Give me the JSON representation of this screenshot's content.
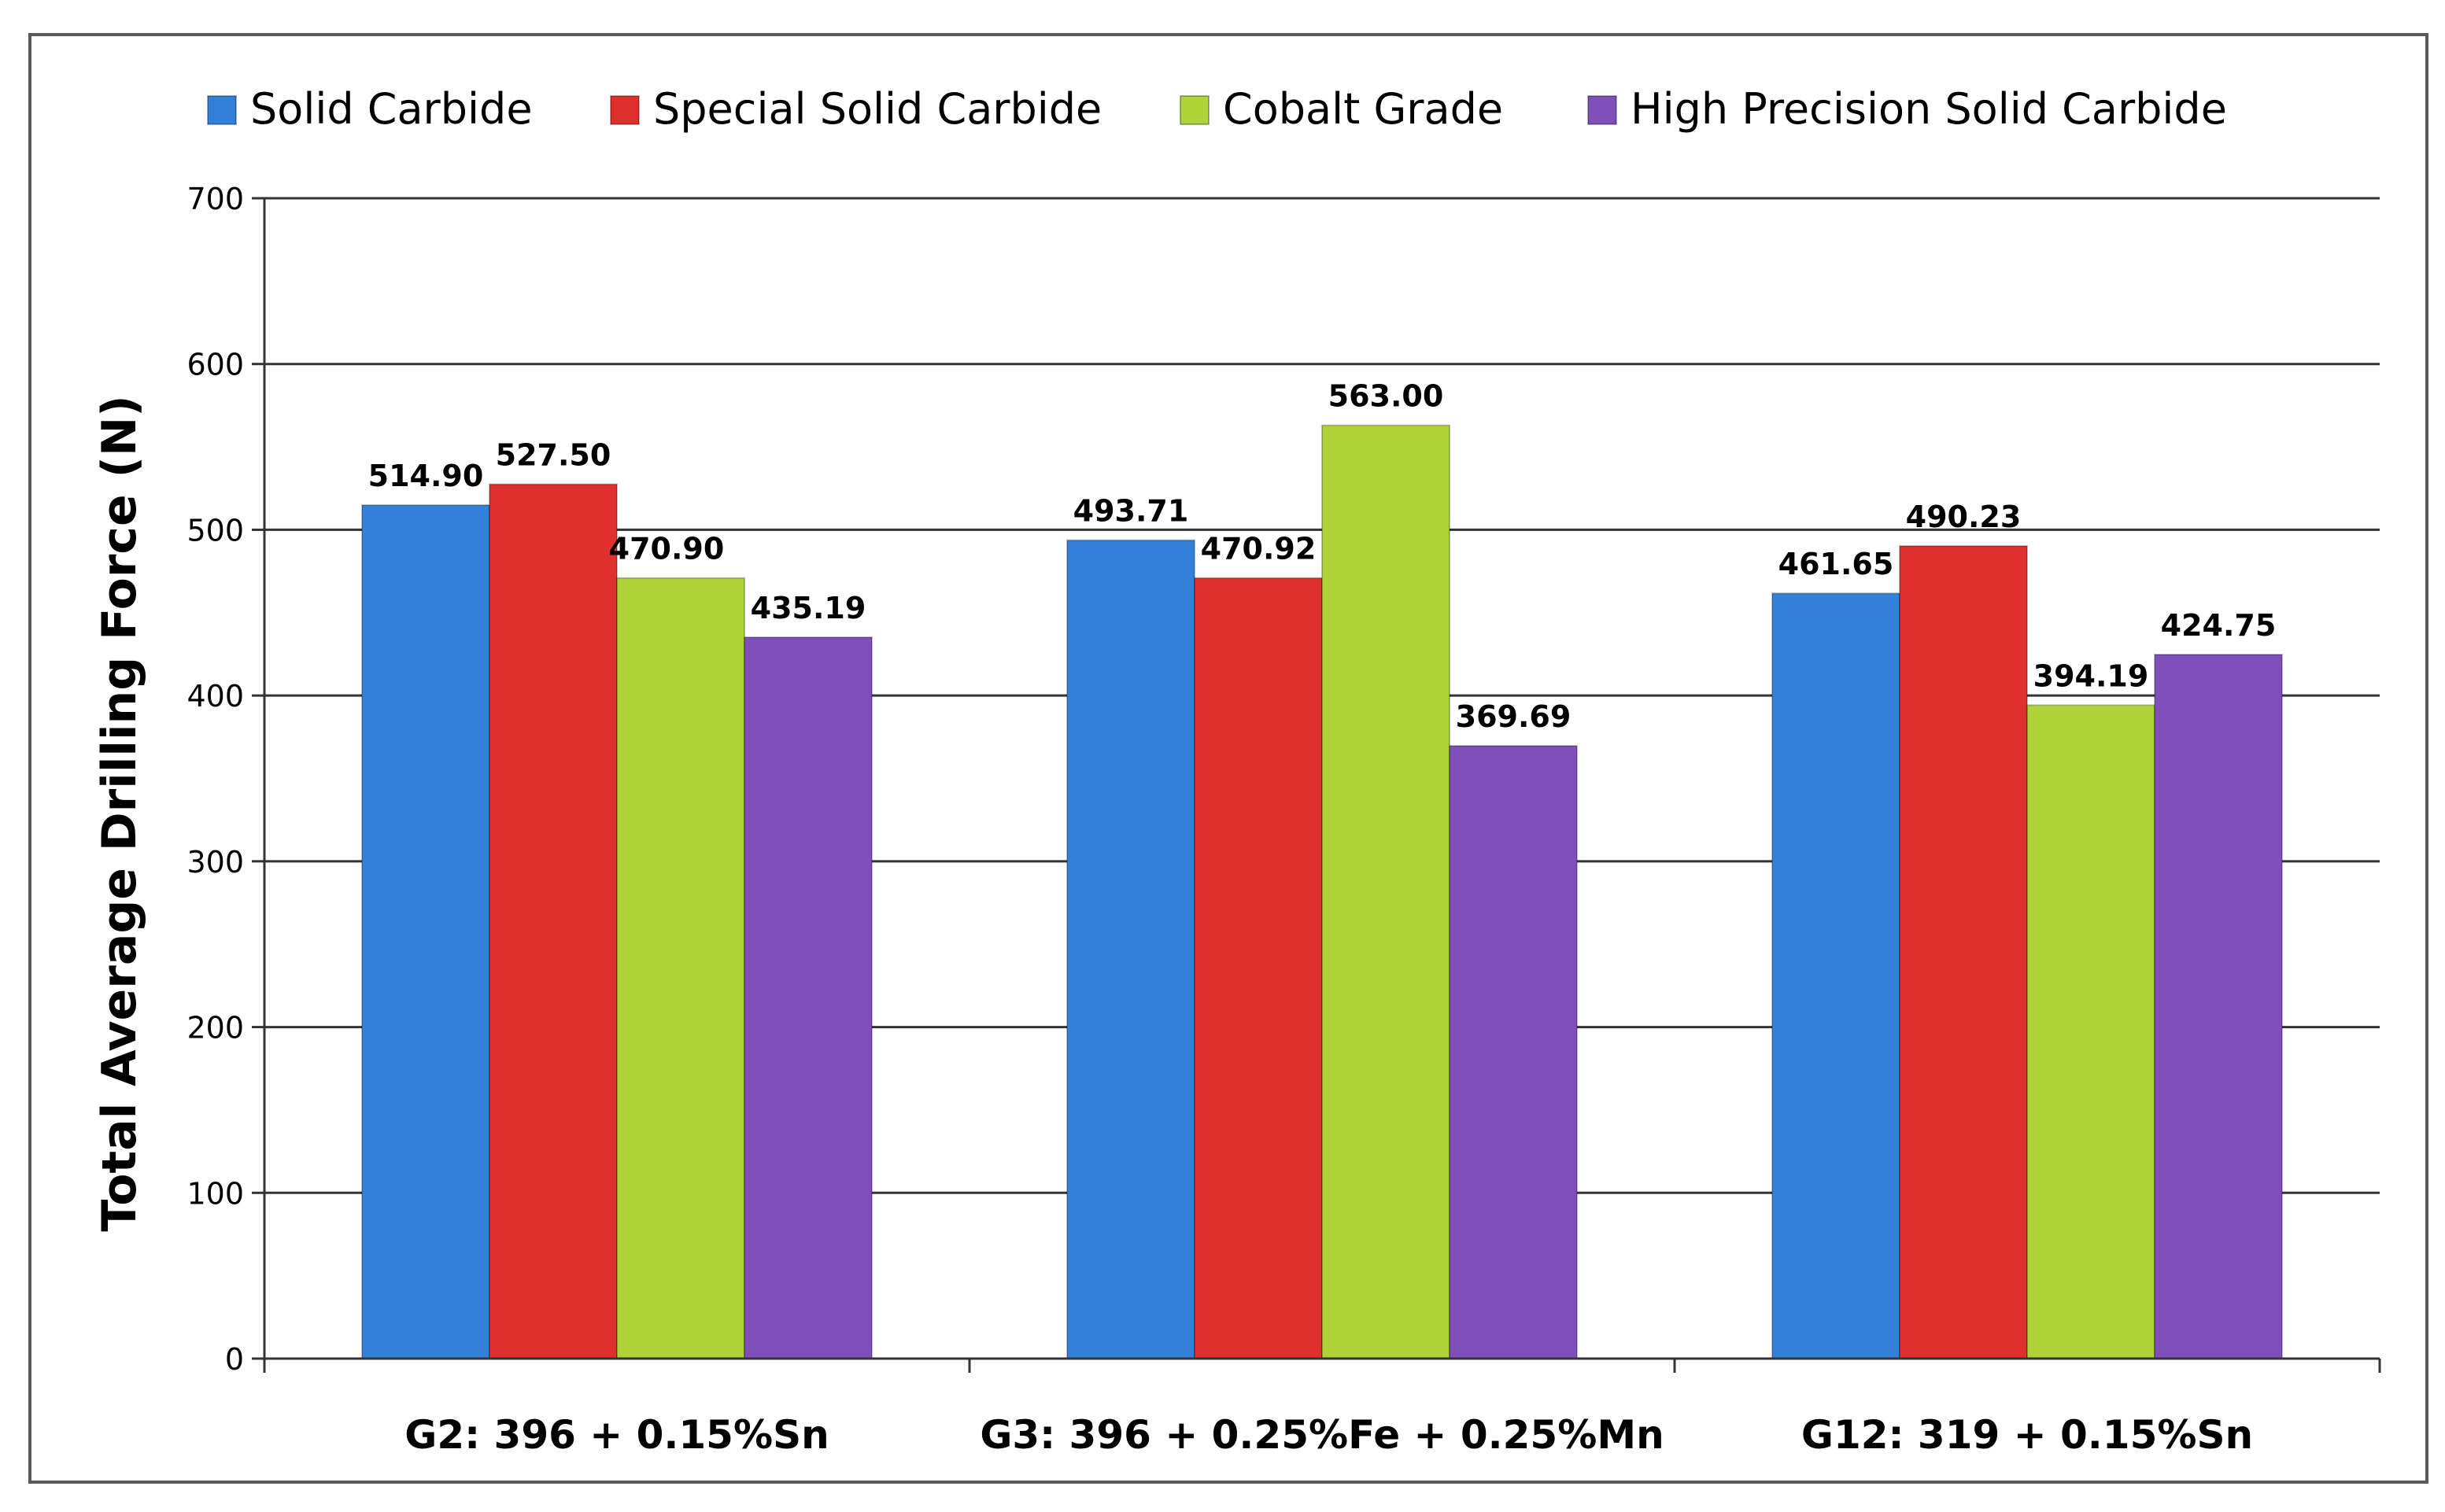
{
  "chart_data": {
    "type": "bar",
    "title": "",
    "xlabel": "",
    "ylabel": "Total Average Drilling Force (N)",
    "ylim": [
      0,
      700
    ],
    "yticks": [
      "0",
      "100",
      "200",
      "300",
      "400",
      "500",
      "600",
      "700"
    ],
    "grid": true,
    "legend_position": "top",
    "categories": [
      "G2: 396 + 0.15%Sn",
      "G3: 396 + 0.25%Fe + 0.25%Mn",
      "G12: 319 + 0.15%Sn"
    ],
    "series": [
      {
        "name": "Solid Carbide",
        "color": "#3380d8",
        "values": [
          514.9,
          493.71,
          461.65
        ],
        "labels": [
          "514.90",
          "493.71",
          "461.65"
        ]
      },
      {
        "name": "Special Solid Carbide",
        "color": "#de312d",
        "values": [
          527.5,
          470.92,
          490.23
        ],
        "labels": [
          "527.50",
          "470.92",
          "490.23"
        ]
      },
      {
        "name": "Cobalt Grade",
        "color": "#aed43a",
        "values": [
          470.9,
          563.0,
          394.19
        ],
        "labels": [
          "470.90",
          "563.00",
          "394.19"
        ]
      },
      {
        "name": "High Precision Solid Carbide",
        "color": "#7f4fba",
        "values": [
          435.19,
          369.69,
          424.75
        ],
        "labels": [
          "435.19",
          "369.69",
          "424.75"
        ]
      }
    ]
  }
}
